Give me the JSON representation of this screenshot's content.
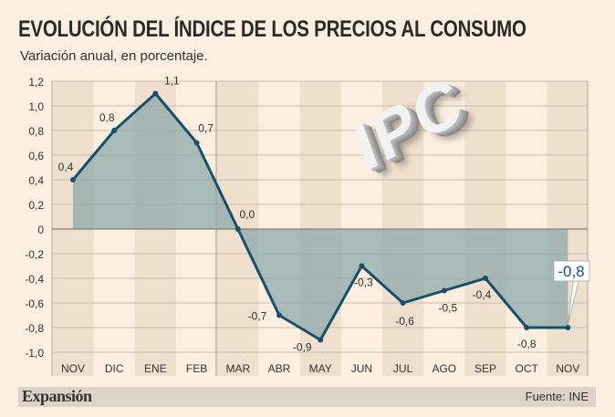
{
  "title": "EVOLUCIÓN DEL ÍNDICE DE LOS PRECIOS AL CONSUMO",
  "subtitle": "Variación anual, en porcentaje.",
  "graphic_text": "IPC",
  "brand": "Expansión",
  "source": "Fuente: INE",
  "colors": {
    "line": "#17506a",
    "area": "#8fa8a8",
    "background": "#fcefe0",
    "band": "#efdfcd"
  },
  "chart_data": {
    "type": "area",
    "categories": [
      "NOV",
      "DIC",
      "ENE",
      "FEB",
      "MAR",
      "ABR",
      "MAY",
      "JUN",
      "JUL",
      "AGO",
      "SEP",
      "OCT",
      "NOV"
    ],
    "values": [
      0.4,
      0.8,
      1.1,
      0.7,
      0.0,
      -0.7,
      -0.9,
      -0.3,
      -0.6,
      -0.5,
      -0.4,
      -0.8,
      -0.8
    ],
    "data_labels": [
      "0,4",
      "0,8",
      "1,1",
      "0,7",
      "0,0",
      "-0,7",
      "-0,9",
      "-0,3",
      "-0,6",
      "-0,5",
      "-0,4",
      "-0,8",
      "-0,8"
    ],
    "yticks": [
      "1,2",
      "1,0",
      "0,8",
      "0,6",
      "0,4",
      "0,2",
      "0",
      "-0,2",
      "-0,4",
      "-0,6",
      "-0,8",
      "-1,0"
    ],
    "ylim": [
      -1.0,
      1.2
    ],
    "grid": true,
    "highlight_last": true
  }
}
